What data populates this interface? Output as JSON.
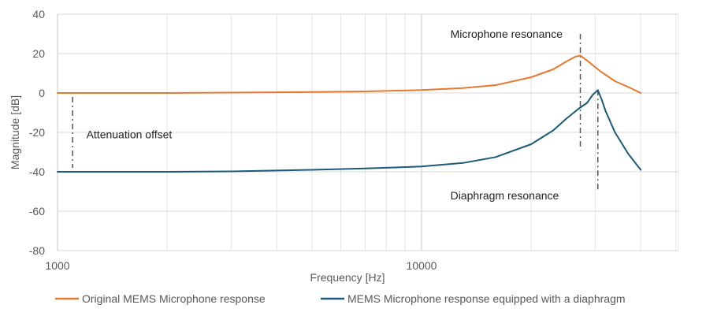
{
  "chart_data": {
    "type": "line",
    "x_scale": "log",
    "xlim": [
      1000,
      70000
    ],
    "ylim": [
      -80,
      40
    ],
    "x_ticks": [
      {
        "value": 1000,
        "label": "1000"
      },
      {
        "value": 10000,
        "label": "10000"
      }
    ],
    "y_ticks": [
      {
        "value": 40,
        "label": "40"
      },
      {
        "value": 20,
        "label": "20"
      },
      {
        "value": 0,
        "label": "0"
      },
      {
        "value": -20,
        "label": "-20"
      },
      {
        "value": -40,
        "label": "-40"
      },
      {
        "value": -60,
        "label": "-60"
      },
      {
        "value": -80,
        "label": "-80"
      }
    ],
    "xlabel": "Frequency [Hz]",
    "ylabel": "Magnitude [dB]",
    "grid": true,
    "legend_position": "bottom",
    "series": [
      {
        "name": "Original MEMS Microphone response",
        "color": "#e8782f",
        "points": [
          [
            1000,
            0
          ],
          [
            2000,
            0
          ],
          [
            3000,
            0.2
          ],
          [
            5000,
            0.5
          ],
          [
            7000,
            0.8
          ],
          [
            10000,
            1.5
          ],
          [
            13000,
            2.5
          ],
          [
            16000,
            4
          ],
          [
            20000,
            8
          ],
          [
            23000,
            12
          ],
          [
            25000,
            16
          ],
          [
            26500,
            18.5
          ],
          [
            27300,
            19
          ],
          [
            28500,
            16.5
          ],
          [
            31000,
            11
          ],
          [
            34000,
            6
          ],
          [
            37000,
            3
          ],
          [
            40000,
            0
          ]
        ]
      },
      {
        "name": "MEMS Microphone response equipped with a diaphragm",
        "color": "#1a5a7a",
        "points": [
          [
            1000,
            -40
          ],
          [
            2000,
            -40
          ],
          [
            3000,
            -39.8
          ],
          [
            5000,
            -39
          ],
          [
            7000,
            -38.3
          ],
          [
            10000,
            -37.3
          ],
          [
            13000,
            -35.5
          ],
          [
            16000,
            -32.5
          ],
          [
            20000,
            -26
          ],
          [
            23000,
            -19
          ],
          [
            25000,
            -13
          ],
          [
            27000,
            -8
          ],
          [
            28500,
            -5
          ],
          [
            29500,
            -1
          ],
          [
            30500,
            1.5
          ],
          [
            31200,
            -3
          ],
          [
            32000,
            -9
          ],
          [
            34000,
            -20
          ],
          [
            37000,
            -31
          ],
          [
            40000,
            -39
          ]
        ]
      }
    ],
    "annotations": [
      {
        "text": "Microphone resonance",
        "x": 27300,
        "y_from": -29,
        "y_to": 30,
        "label_x": 12000,
        "label_y": 30
      },
      {
        "text": "Diaphragm resonance",
        "x": 30500,
        "y_from": -50,
        "y_to": 1.5,
        "label_x": 12000,
        "label_y": -52
      },
      {
        "text": "Attenuation offset",
        "x": 1100,
        "y_from": -38,
        "y_to": -2,
        "label_x": 1200,
        "label_y": -21
      }
    ]
  }
}
